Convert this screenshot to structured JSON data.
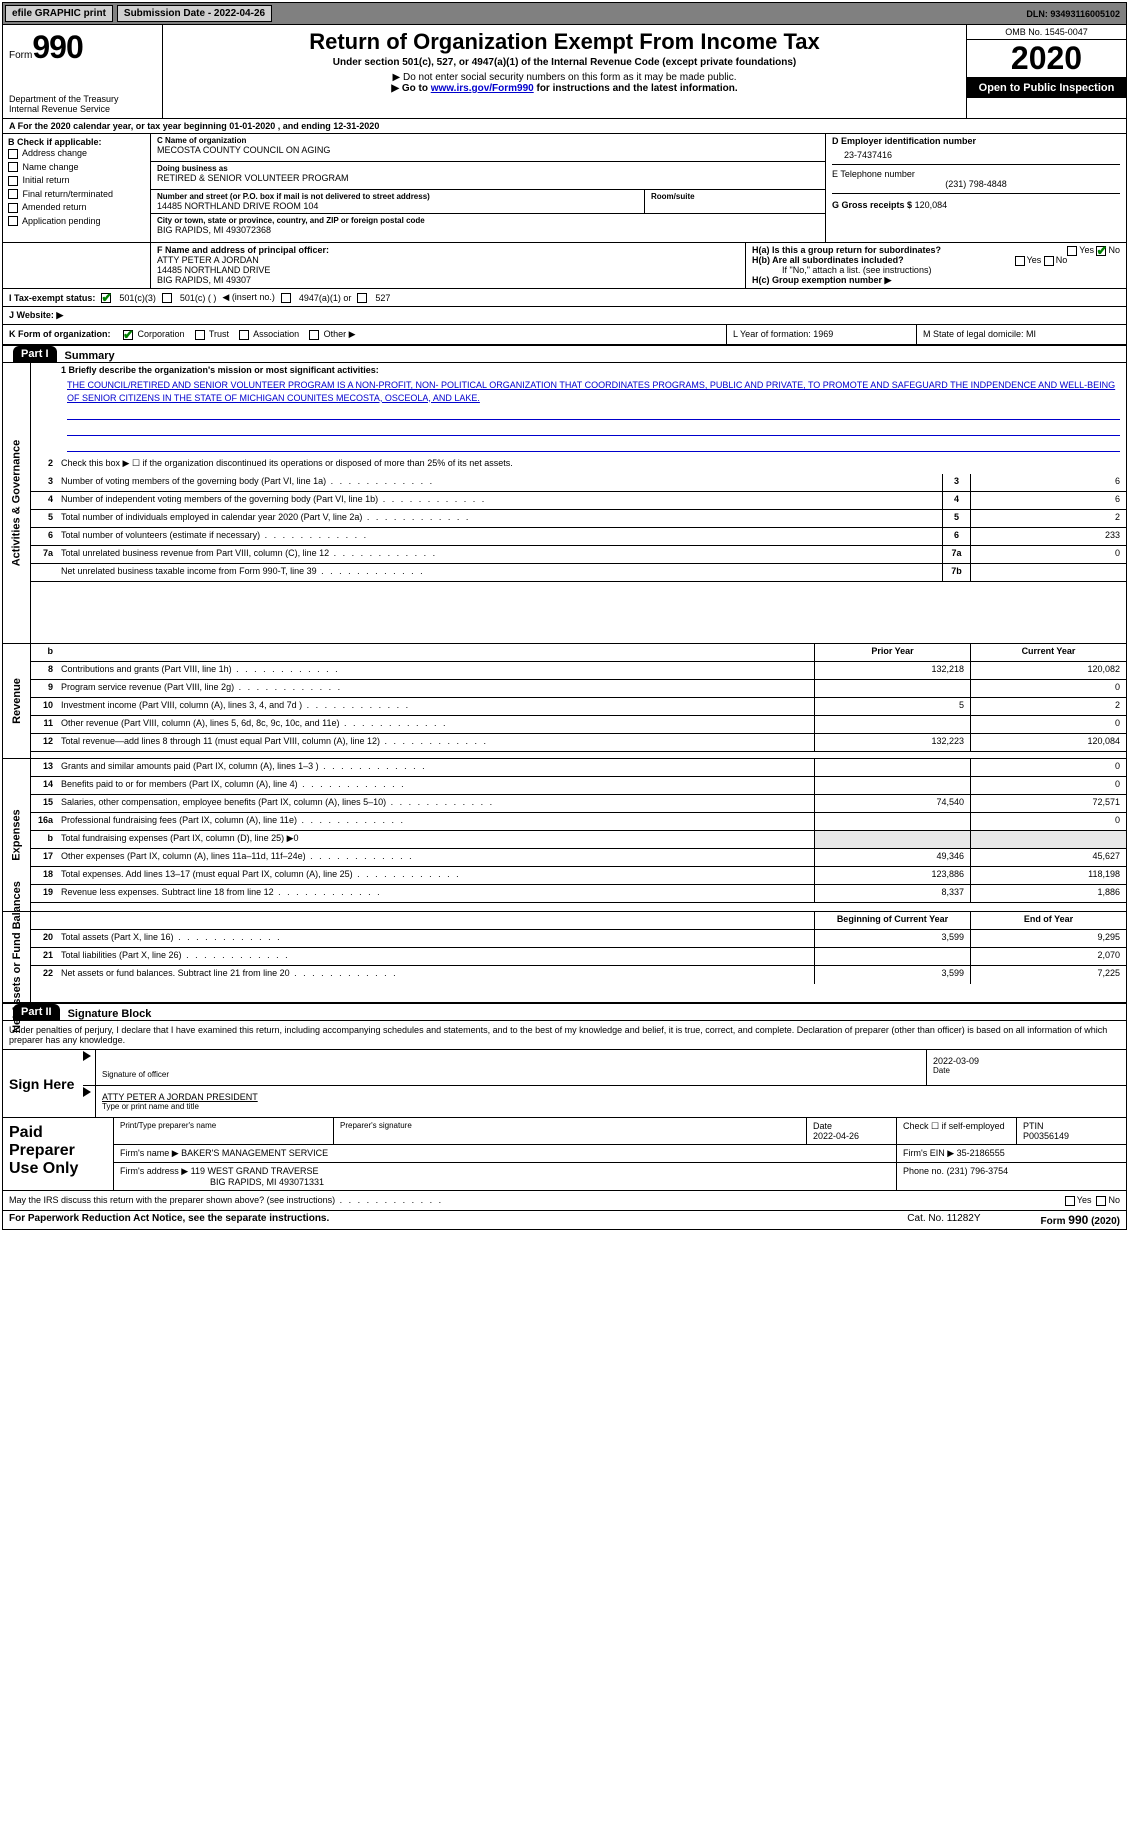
{
  "topbar": {
    "efile": "efile GRAPHIC print",
    "submission_label": "Submission Date - 2022-04-26",
    "dln": "DLN: 93493116005102"
  },
  "header": {
    "form_word": "Form",
    "form_number": "990",
    "dept1": "Department of the Treasury",
    "dept2": "Internal Revenue Service",
    "title": "Return of Organization Exempt From Income Tax",
    "subtitle": "Under section 501(c), 527, or 4947(a)(1) of the Internal Revenue Code (except private foundations)",
    "note1": "▶ Do not enter social security numbers on this form as it may be made public.",
    "note2_pre": "▶ Go to ",
    "note2_link": "www.irs.gov/Form990",
    "note2_post": " for instructions and the latest information.",
    "omb": "OMB No. 1545-0047",
    "year": "2020",
    "inspect": "Open to Public Inspection"
  },
  "row_a": "A For the 2020 calendar year, or tax year beginning 01-01-2020   , and ending 12-31-2020",
  "box_b": {
    "title": "B Check if applicable:",
    "items": [
      "Address change",
      "Name change",
      "Initial return",
      "Final return/terminated",
      "Amended return",
      "Application pending"
    ]
  },
  "box_c": {
    "label": "C Name of organization",
    "name": "MECOSTA COUNTY COUNCIL ON AGING",
    "dba_label": "Doing business as",
    "dba": "RETIRED & SENIOR VOLUNTEER PROGRAM",
    "addr_label": "Number and street (or P.O. box if mail is not delivered to street address)",
    "room_label": "Room/suite",
    "addr": "14485 NORTHLAND DRIVE ROOM 104",
    "city_label": "City or town, state or province, country, and ZIP or foreign postal code",
    "city": "BIG RAPIDS, MI  493072368"
  },
  "box_d": {
    "label": "D Employer identification number",
    "value": "23-7437416"
  },
  "box_e": {
    "label": "E Telephone number",
    "value": "(231) 798-4848"
  },
  "box_g": {
    "label": "G Gross receipts $",
    "value": "120,084"
  },
  "box_f": {
    "label": "F Name and address of principal officer:",
    "line1": "ATTY PETER A JORDAN",
    "line2": "14485 NORTHLAND DRIVE",
    "line3": "BIG RAPIDS, MI  49307"
  },
  "box_h": {
    "ha": "H(a)  Is this a group return for subordinates?",
    "hb": "H(b)  Are all subordinates included?",
    "hb_note": "If \"No,\" attach a list. (see instructions)",
    "hc": "H(c)  Group exemption number ▶",
    "yes": "Yes",
    "no": "No"
  },
  "row_i": {
    "label": "I   Tax-exempt status:",
    "opt1": "501(c)(3)",
    "opt2": "501(c) (  )",
    "opt2b": "◀ (insert no.)",
    "opt3": "4947(a)(1) or",
    "opt4": "527"
  },
  "row_j": {
    "label": "J   Website: ▶"
  },
  "row_k": {
    "label": "K Form of organization:",
    "opts": [
      "Corporation",
      "Trust",
      "Association",
      "Other ▶"
    ],
    "l": "L Year of formation: 1969",
    "m": "M State of legal domicile: MI"
  },
  "part1": {
    "tag": "Part I",
    "title": "Summary"
  },
  "mission": {
    "q": "1  Briefly describe the organization's mission or most significant activities:",
    "text": "THE COUNCIL/RETIRED AND SENIOR VOLUNTEER PROGRAM IS A NON-PROFIT, NON- POLITICAL ORGANIZATION THAT COORDINATES PROGRAMS, PUBLIC AND PRIVATE, TO PROMOTE AND SAFEGUARD THE INDPENDENCE AND WELL-BEING OF SENIOR CITIZENS IN THE STATE OF MICHIGAN COUNITES MECOSTA, OSCEOLA, AND LAKE."
  },
  "gov_rows": [
    {
      "n": "2",
      "d": "Check this box ▶ ☐ if the organization discontinued its operations or disposed of more than 25% of its net assets.",
      "noval": true
    },
    {
      "n": "3",
      "d": "Number of voting members of the governing body (Part VI, line 1a)",
      "box": "3",
      "v": "6"
    },
    {
      "n": "4",
      "d": "Number of independent voting members of the governing body (Part VI, line 1b)",
      "box": "4",
      "v": "6"
    },
    {
      "n": "5",
      "d": "Total number of individuals employed in calendar year 2020 (Part V, line 2a)",
      "box": "5",
      "v": "2"
    },
    {
      "n": "6",
      "d": "Total number of volunteers (estimate if necessary)",
      "box": "6",
      "v": "233"
    },
    {
      "n": "7a",
      "d": "Total unrelated business revenue from Part VIII, column (C), line 12",
      "box": "7a",
      "v": "0"
    },
    {
      "n": "",
      "d": "Net unrelated business taxable income from Form 990-T, line 39",
      "box": "7b",
      "v": ""
    }
  ],
  "col_hdrs": {
    "prior": "Prior Year",
    "current": "Current Year",
    "beg": "Beginning of Current Year",
    "end": "End of Year"
  },
  "rev_rows": [
    {
      "n": "8",
      "d": "Contributions and grants (Part VIII, line 1h)",
      "p": "132,218",
      "c": "120,082"
    },
    {
      "n": "9",
      "d": "Program service revenue (Part VIII, line 2g)",
      "p": "",
      "c": "0"
    },
    {
      "n": "10",
      "d": "Investment income (Part VIII, column (A), lines 3, 4, and 7d )",
      "p": "5",
      "c": "2"
    },
    {
      "n": "11",
      "d": "Other revenue (Part VIII, column (A), lines 5, 6d, 8c, 9c, 10c, and 11e)",
      "p": "",
      "c": "0"
    },
    {
      "n": "12",
      "d": "Total revenue—add lines 8 through 11 (must equal Part VIII, column (A), line 12)",
      "p": "132,223",
      "c": "120,084"
    }
  ],
  "exp_rows": [
    {
      "n": "13",
      "d": "Grants and similar amounts paid (Part IX, column (A), lines 1–3 )",
      "p": "",
      "c": "0"
    },
    {
      "n": "14",
      "d": "Benefits paid to or for members (Part IX, column (A), line 4)",
      "p": "",
      "c": "0"
    },
    {
      "n": "15",
      "d": "Salaries, other compensation, employee benefits (Part IX, column (A), lines 5–10)",
      "p": "74,540",
      "c": "72,571"
    },
    {
      "n": "16a",
      "d": "Professional fundraising fees (Part IX, column (A), line 11e)",
      "p": "",
      "c": "0"
    },
    {
      "n": "b",
      "d": "Total fundraising expenses (Part IX, column (D), line 25) ▶0",
      "shade": true
    },
    {
      "n": "17",
      "d": "Other expenses (Part IX, column (A), lines 11a–11d, 11f–24e)",
      "p": "49,346",
      "c": "45,627"
    },
    {
      "n": "18",
      "d": "Total expenses. Add lines 13–17 (must equal Part IX, column (A), line 25)",
      "p": "123,886",
      "c": "118,198"
    },
    {
      "n": "19",
      "d": "Revenue less expenses. Subtract line 18 from line 12",
      "p": "8,337",
      "c": "1,886"
    }
  ],
  "net_rows": [
    {
      "n": "20",
      "d": "Total assets (Part X, line 16)",
      "p": "3,599",
      "c": "9,295"
    },
    {
      "n": "21",
      "d": "Total liabilities (Part X, line 26)",
      "p": "",
      "c": "2,070"
    },
    {
      "n": "22",
      "d": "Net assets or fund balances. Subtract line 21 from line 20",
      "p": "3,599",
      "c": "7,225"
    }
  ],
  "part2": {
    "tag": "Part II",
    "title": "Signature Block"
  },
  "sig": {
    "penalty": "Under penalties of perjury, I declare that I have examined this return, including accompanying schedules and statements, and to the best of my knowledge and belief, it is true, correct, and complete. Declaration of preparer (other than officer) is based on all information of which preparer has any knowledge.",
    "sign_here": "Sign Here",
    "sig_officer": "Signature of officer",
    "date_label": "Date",
    "sig_date": "2022-03-09",
    "name_title": "ATTY PETER A JORDAN  PRESIDENT",
    "type_name": "Type or print name and title"
  },
  "paid": {
    "title": "Paid Preparer Use Only",
    "print_label": "Print/Type preparer's name",
    "sig_label": "Preparer's signature",
    "date_label": "Date",
    "date": "2022-04-26",
    "check_label": "Check ☐ if self-employed",
    "ptin_label": "PTIN",
    "ptin": "P00356149",
    "firm_name_label": "Firm's name    ▶",
    "firm_name": "BAKER'S MANAGEMENT SERVICE",
    "firm_ein_label": "Firm's EIN ▶",
    "firm_ein": "35-2186555",
    "firm_addr_label": "Firm's address ▶",
    "firm_addr1": "119 WEST GRAND TRAVERSE",
    "firm_addr2": "BIG RAPIDS, MI  493071331",
    "phone_label": "Phone no.",
    "phone": "(231) 796-3754"
  },
  "discuss": {
    "q": "May the IRS discuss this return with the preparer shown above? (see instructions)",
    "yes": "Yes",
    "no": "No"
  },
  "footer": {
    "left": "For Paperwork Reduction Act Notice, see the separate instructions.",
    "cat": "Cat. No. 11282Y",
    "right": "Form 990 (2020)"
  },
  "side_labels": {
    "gov": "Activities & Governance",
    "rev": "Revenue",
    "exp": "Expenses",
    "net": "Net Assets or Fund Balances"
  }
}
